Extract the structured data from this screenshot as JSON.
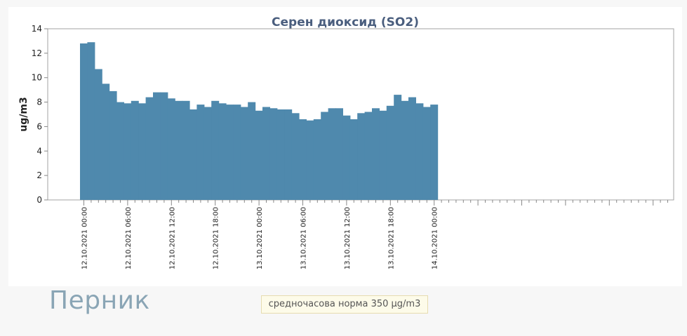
{
  "page": {
    "city": "Перник",
    "norm_text": "средночасова норма 350 µg/m3"
  },
  "chart_data": {
    "type": "bar",
    "title": "Серен диоксид (SO2)",
    "ylabel": "ug/m3",
    "xlabel": "",
    "ylim": [
      0,
      14
    ],
    "yticks": [
      0,
      2,
      4,
      6,
      8,
      10,
      12,
      14
    ],
    "x_tick_labels": [
      "12.10.2021 00:00",
      "12.10.2021 06:00",
      "12.10.2021 12:00",
      "12.10.2021 18:00",
      "13.10.2021 00:00",
      "13.10.2021 06:00",
      "13.10.2021 12:00",
      "13.10.2021 18:00",
      "14.10.2021 00:00"
    ],
    "x_start": "12.10.2021 00:00",
    "x_step_hours": 1,
    "values": [
      12.8,
      12.9,
      10.7,
      9.5,
      8.9,
      8.0,
      7.9,
      8.1,
      7.9,
      8.4,
      8.8,
      8.8,
      8.3,
      8.1,
      8.1,
      7.4,
      7.8,
      7.6,
      8.1,
      7.9,
      7.8,
      7.8,
      7.6,
      8.0,
      7.3,
      7.6,
      7.5,
      7.4,
      7.4,
      7.1,
      6.6,
      6.5,
      6.6,
      7.2,
      7.5,
      7.5,
      6.9,
      6.6,
      7.1,
      7.2,
      7.5,
      7.3,
      7.7,
      8.6,
      8.1,
      8.4,
      7.9,
      7.6,
      7.8
    ],
    "color": "#4f89ad",
    "grid": false
  }
}
